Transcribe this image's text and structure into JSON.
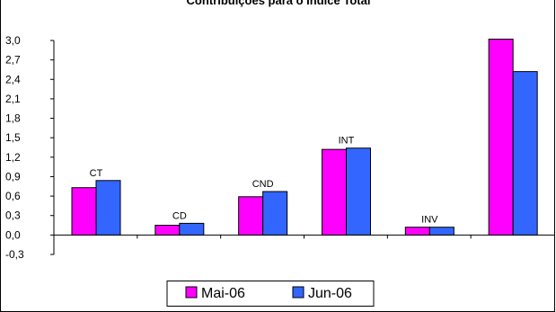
{
  "chart_data": {
    "type": "bar",
    "title": "Contribuições para o Índice Total",
    "categories": [
      "CT",
      "CD",
      "CND",
      "INT",
      "INV",
      ""
    ],
    "series": [
      {
        "name": "Mai-06",
        "values": [
          0.73,
          0.15,
          0.59,
          1.32,
          0.12,
          3.02
        ],
        "color": "#FF00FF"
      },
      {
        "name": "Jun-06",
        "values": [
          0.84,
          0.18,
          0.67,
          1.34,
          0.12,
          2.52
        ],
        "color": "#3366FF"
      }
    ],
    "yticks": [
      "3,0",
      "2,7",
      "2,4",
      "2,1",
      "1,8",
      "1,5",
      "1,2",
      "0,9",
      "0,6",
      "0,3",
      "0,0",
      "-0,3"
    ],
    "ylim": [
      -0.3,
      3.0
    ],
    "grid": false,
    "legend_position": "bottom"
  }
}
